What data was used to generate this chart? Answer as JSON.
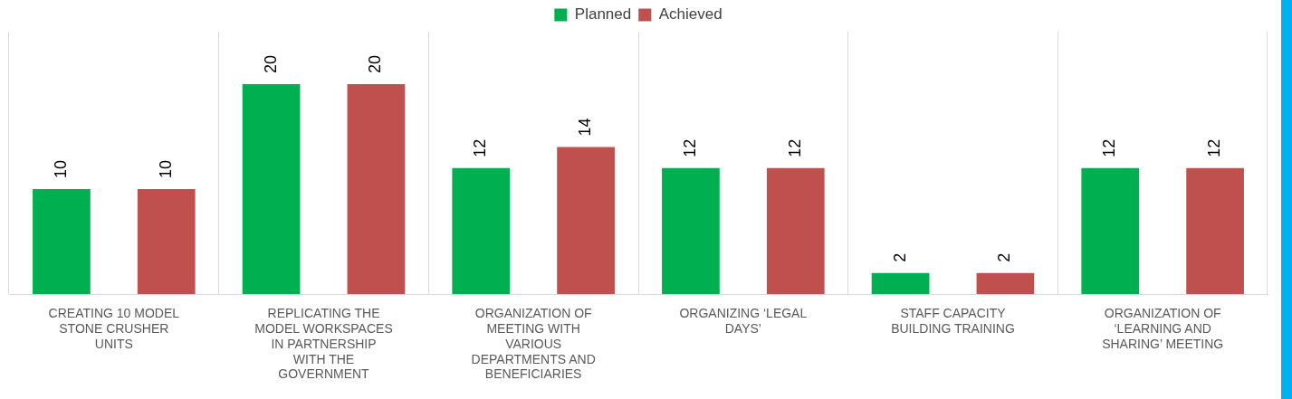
{
  "chart_data": {
    "type": "bar",
    "categories": [
      "CREATING 10 MODEL STONE CRUSHER UNITS",
      "REPLICATING THE MODEL WORKSPACES IN PARTNERSHIP WITH THE GOVERNMENT",
      "ORGANIZATION OF MEETING WITH VARIOUS DEPARTMENTS AND BENEFICIARIES",
      "ORGANIZING ‘LEGAL DAYS’",
      "STAFF CAPACITY BUILDING TRAINING",
      "ORGANIZATION OF ‘LEARNING AND SHARING’ MEETING"
    ],
    "series": [
      {
        "name": "Planned",
        "color": "#00b050",
        "values": [
          10,
          20,
          12,
          12,
          2,
          12
        ]
      },
      {
        "name": "Achieved",
        "color": "#c0504d",
        "values": [
          10,
          20,
          14,
          12,
          2,
          12
        ]
      }
    ],
    "ylim": [
      0,
      25
    ],
    "grid": "x",
    "legend": "top",
    "tick_labels": "x",
    "data_labels": true
  }
}
